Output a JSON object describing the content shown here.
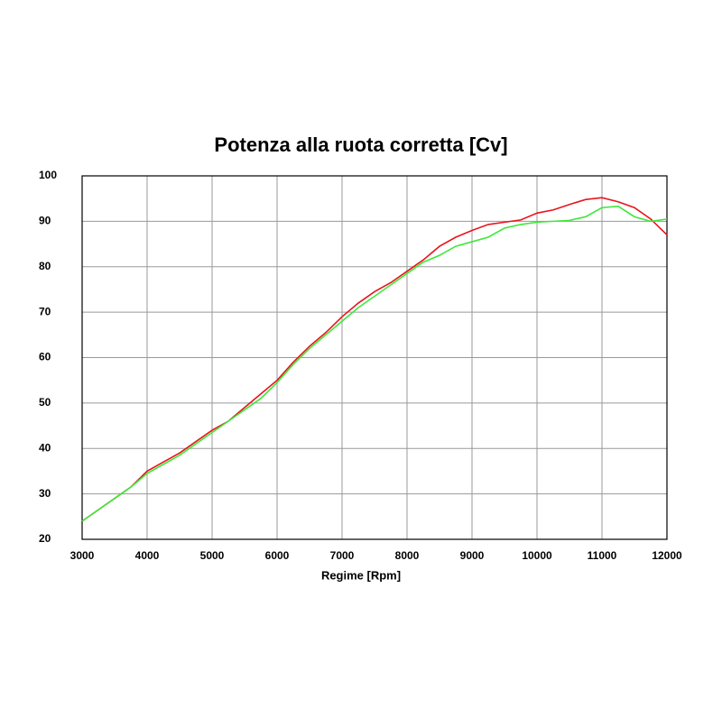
{
  "chart_data": {
    "type": "line",
    "title": "Potenza alla ruota corretta [Cv]",
    "x_label": "Regime [Rpm]",
    "x": [
      3000,
      3250,
      3500,
      3750,
      4000,
      4250,
      4500,
      4750,
      5000,
      5250,
      5500,
      5750,
      6000,
      6250,
      6500,
      6750,
      7000,
      7250,
      7500,
      7750,
      8000,
      8250,
      8500,
      8750,
      9000,
      9250,
      9500,
      9750,
      10000,
      10250,
      10500,
      10750,
      11000,
      11250,
      11500,
      11750,
      12000
    ],
    "series": [
      {
        "color": "#e8141c",
        "values": [
          24,
          26.5,
          29,
          31.5,
          35,
          37,
          39,
          41.5,
          44,
          46,
          49,
          52,
          55,
          59,
          62.5,
          65.5,
          69,
          72,
          74.5,
          76.5,
          79,
          81.5,
          84.5,
          86.5,
          88,
          89.3,
          89.8,
          90.3,
          91.8,
          92.5,
          93.7,
          94.8,
          95.2,
          94.3,
          93,
          90.5,
          87
        ]
      },
      {
        "color": "#3ee83a",
        "values": [
          24,
          26.5,
          29,
          31.5,
          34.5,
          36.5,
          38.5,
          41,
          43.5,
          46,
          48.5,
          51,
          54.5,
          58.5,
          62,
          65,
          68,
          71,
          73.5,
          76,
          78.5,
          81,
          82.5,
          84.5,
          85.5,
          86.5,
          88.5,
          89.3,
          89.8,
          90,
          90.2,
          91,
          93,
          93.3,
          91,
          90,
          90.5
        ]
      }
    ],
    "xlim": [
      3000,
      12000
    ],
    "xticks": [
      3000,
      4000,
      5000,
      6000,
      7000,
      8000,
      9000,
      10000,
      11000,
      12000
    ],
    "ylim": [
      20,
      100
    ],
    "yticks": [
      20,
      30,
      40,
      50,
      60,
      70,
      80,
      90,
      100
    ],
    "grid": true
  }
}
